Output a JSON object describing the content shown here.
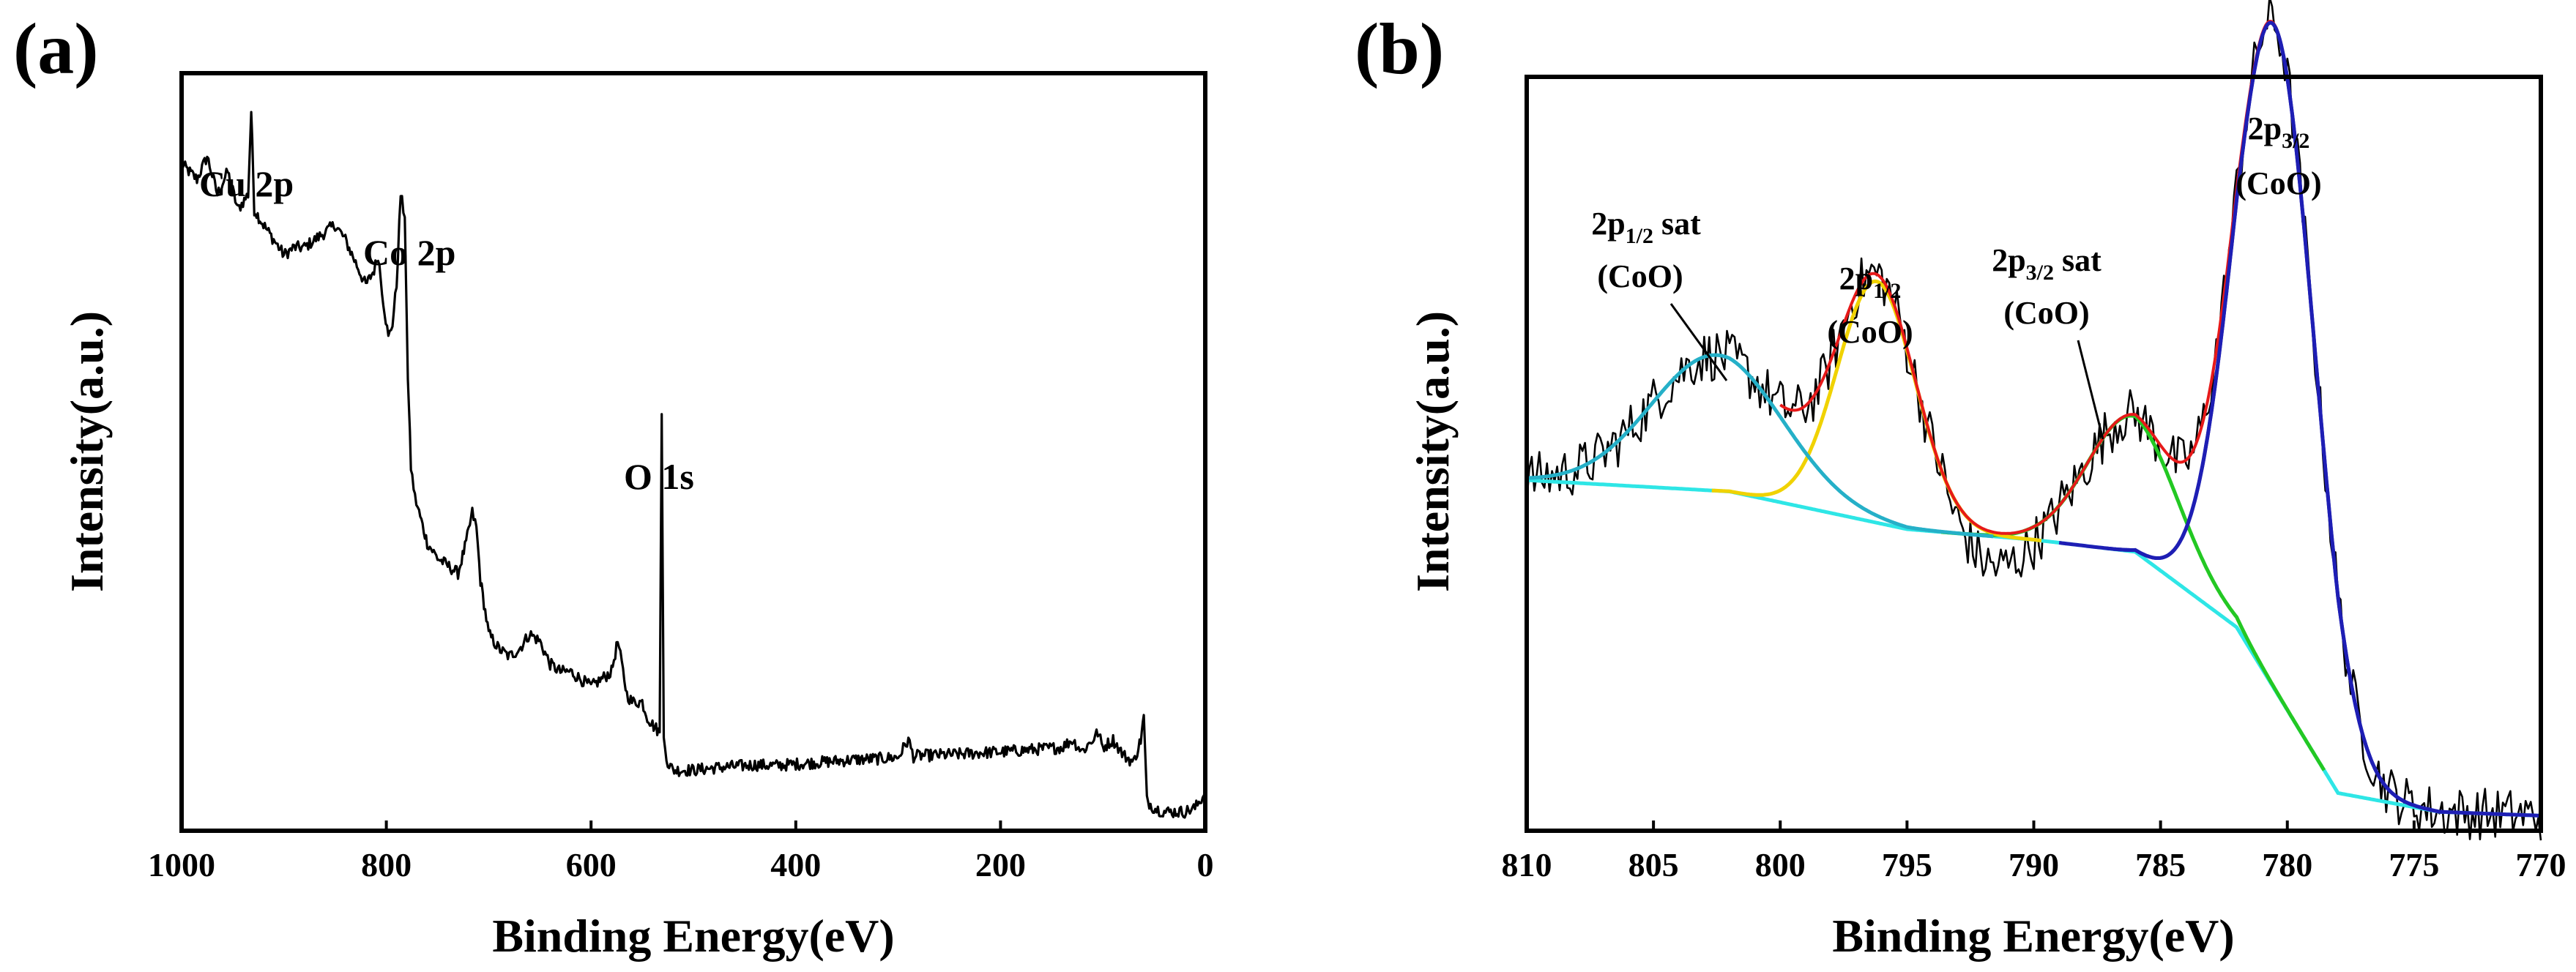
{
  "chart_data": [
    {
      "type": "line",
      "panel": "(a)",
      "xlabel": "Binding Energy(eV)",
      "ylabel": "Intensity(a.u.)",
      "xlim": [
        1000,
        0
      ],
      "x_ticks": [
        1000,
        800,
        600,
        400,
        200,
        0
      ],
      "ylim": [
        0,
        100
      ],
      "grid": false,
      "series": [
        {
          "name": "survey",
          "color": "#000000",
          "x": [
            1000,
            985,
            975,
            965,
            955,
            945,
            935,
            932,
            929,
            920,
            910,
            900,
            890,
            880,
            870,
            860,
            850,
            840,
            830,
            820,
            812,
            808,
            803,
            798,
            794,
            790,
            786,
            782,
            779,
            776,
            772,
            768,
            760,
            750,
            740,
            730,
            722,
            716,
            712,
            708,
            700,
            690,
            680,
            670,
            660,
            650,
            640,
            630,
            620,
            610,
            600,
            590,
            580,
            574,
            570,
            565,
            560,
            550,
            545,
            540,
            533,
            531,
            529,
            525,
            520,
            500,
            480,
            460,
            440,
            420,
            400,
            380,
            360,
            340,
            320,
            300,
            290,
            285,
            280,
            260,
            240,
            220,
            200,
            180,
            160,
            140,
            130,
            120,
            110,
            105,
            100,
            90,
            80,
            70,
            63,
            60,
            57,
            50,
            40,
            30,
            20,
            10,
            5,
            0
          ],
          "values": [
            88,
            86,
            89,
            84,
            87,
            82,
            84,
            95,
            82,
            80,
            78,
            76,
            77,
            77,
            78,
            79,
            80,
            78,
            75,
            72,
            74,
            76,
            70,
            65,
            67,
            72,
            84,
            81,
            60,
            48,
            44,
            42,
            38,
            36,
            35,
            34,
            38,
            42,
            40,
            33,
            26,
            24,
            23,
            24,
            26,
            25,
            22,
            21,
            21,
            20,
            19,
            20,
            21,
            25,
            22,
            18,
            17,
            17,
            15,
            14,
            13,
            55,
            12,
            9,
            8,
            8,
            8.3,
            8.5,
            8.7,
            8.6,
            8.8,
            9,
            9.2,
            9.4,
            9.5,
            9.7,
            12,
            9.8,
            9.9,
            10,
            10.1,
            10.3,
            10.4,
            10.6,
            10.8,
            11,
            12,
            10.5,
            12,
            13,
            11,
            12,
            10,
            9,
            12,
            15,
            4,
            3,
            2.5,
            2.5,
            2.5,
            3,
            4,
            5
          ]
        }
      ],
      "annotations": [
        {
          "text": "Cu 2p",
          "x": 932
        },
        {
          "text": "Co 2p",
          "x": 780
        },
        {
          "text": "O 1s",
          "x": 531
        }
      ]
    },
    {
      "type": "line",
      "panel": "(b)",
      "xlabel": "Binding Energy(eV)",
      "ylabel": "Intensity(a.u.)",
      "xlim": [
        810,
        770
      ],
      "x_ticks": [
        810,
        805,
        800,
        795,
        790,
        785,
        780,
        775,
        770
      ],
      "ylim": [
        0,
        100
      ],
      "grid": false,
      "background": {
        "x": [
          810,
          802,
          795,
          790,
          786,
          782,
          778,
          774,
          770
        ],
        "values": [
          46.5,
          45,
          40,
          38.6,
          37,
          27,
          5,
          2.5,
          2
        ]
      },
      "peaks": [
        {
          "name": "2p3/2 (CoO)",
          "center": 780.5,
          "height": 88,
          "width": 1.6,
          "color": "#1e1eb4"
        },
        {
          "name": "2p3/2 sat (CoO)",
          "center": 786.1,
          "height": 18,
          "width": 1.8,
          "color": "#23c823"
        },
        {
          "name": "2p1/2 (CoO)",
          "center": 796.2,
          "height": 32,
          "width": 1.55,
          "color": "#f0d200"
        },
        {
          "name": "2p1/2 sat (CoO)",
          "center": 802.5,
          "height": 18,
          "width": 2.6,
          "color": "#25b0c8"
        }
      ],
      "series": [
        {
          "name": "experimental",
          "color": "#000000"
        },
        {
          "name": "envelope",
          "color": "#e61919"
        },
        {
          "name": "background",
          "color": "#2ee6e6"
        }
      ],
      "annotations": [
        {
          "main": "2p",
          "sub": "1/2",
          "suffix": " sat",
          "line2": "(CoO)",
          "x": 802.5
        },
        {
          "main": "2p",
          "sub": "1/2",
          "suffix": "",
          "line2": "(CoO)",
          "x": 796.2
        },
        {
          "main": "2p",
          "sub": "3/2",
          "suffix": " sat",
          "line2": "(CoO)",
          "x": 786.1
        },
        {
          "main": "2p",
          "sub": "3/2",
          "suffix": "",
          "line2": "(CoO)",
          "x": 780.5
        }
      ]
    }
  ]
}
